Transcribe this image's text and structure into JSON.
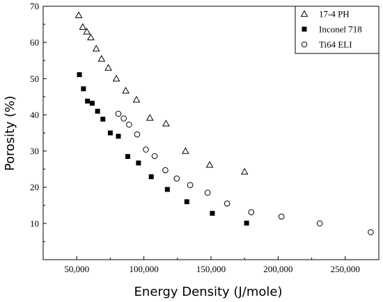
{
  "chart_data": {
    "type": "scatter",
    "title": "",
    "xlabel": "Energy Density (J/mole)",
    "ylabel": "Porosity (%)",
    "xlim": [
      25000,
      275000
    ],
    "ylim": [
      0,
      70
    ],
    "x_ticks": [
      50000,
      100000,
      150000,
      200000,
      250000
    ],
    "x_tick_labels": [
      "50,000",
      "100,000",
      "150,000",
      "200,000",
      "250,000"
    ],
    "y_ticks": [
      10,
      20,
      30,
      40,
      50,
      60,
      70
    ],
    "y_tick_labels": [
      "10",
      "20",
      "30",
      "40",
      "50",
      "60",
      "70"
    ],
    "grid": false,
    "legend_position": "top-right",
    "series": [
      {
        "name": "17-4 PH",
        "marker": "open-triangle",
        "color": "#000000",
        "x": [
          51500,
          54500,
          57500,
          60500,
          64500,
          68500,
          73500,
          79500,
          86500,
          94500,
          104500,
          116500,
          131000,
          149000,
          175000
        ],
        "y": [
          67.5,
          64.3,
          63.0,
          61.4,
          58.3,
          55.5,
          53.0,
          50.0,
          46.7,
          44.2,
          39.2,
          37.6,
          30.0,
          26.2,
          24.3
        ]
      },
      {
        "name": "Inconel 718",
        "marker": "filled-square",
        "color": "#000000",
        "x": [
          52000,
          55000,
          58000,
          61500,
          65500,
          69500,
          75000,
          81000,
          88000,
          96000,
          105500,
          117500,
          132000,
          151000,
          176500
        ],
        "y": [
          51.1,
          47.2,
          43.8,
          43.2,
          41.0,
          38.8,
          35.0,
          34.1,
          28.5,
          26.7,
          22.9,
          19.4,
          16.0,
          12.8,
          10.1
        ]
      },
      {
        "name": "Ti64 ELI",
        "marker": "open-circle",
        "color": "#000000",
        "x": [
          81000,
          85000,
          89000,
          95000,
          101500,
          108000,
          116000,
          124500,
          134500,
          147500,
          162000,
          180000,
          202500,
          231000,
          269000
        ],
        "y": [
          40.3,
          39.0,
          37.3,
          34.6,
          30.4,
          28.6,
          24.7,
          22.4,
          20.6,
          18.5,
          15.5,
          13.1,
          11.9,
          10.0,
          7.6
        ]
      }
    ]
  }
}
